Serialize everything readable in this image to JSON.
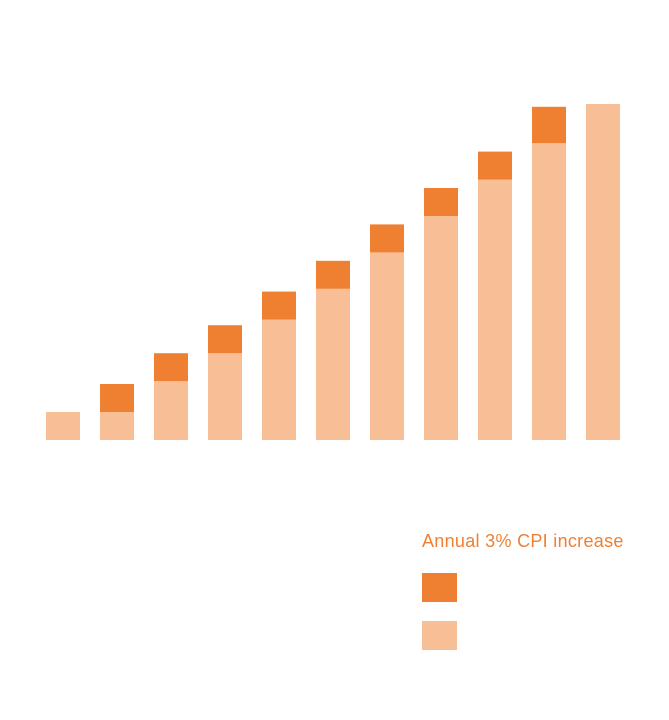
{
  "colors": {
    "base": "#F8BF96",
    "increase": "#EF7F31",
    "legend_text": "#EF7F31"
  },
  "legend": {
    "title": "Annual 3% CPI increase",
    "items": [
      {
        "series": "increase",
        "label": ""
      },
      {
        "series": "base",
        "label": ""
      }
    ]
  },
  "chart_data": {
    "type": "bar",
    "stacked": true,
    "title": "",
    "xlabel": "",
    "ylabel": "",
    "categories": [
      "",
      "",
      "",
      "",
      "",
      "",
      "",
      "",
      "",
      "",
      ""
    ],
    "ylim": [
      0,
      12
    ],
    "series": [
      {
        "key": "base",
        "values": [
          1.0,
          1.0,
          2.1,
          3.1,
          4.3,
          5.4,
          6.7,
          8.0,
          9.3,
          10.6,
          12.0
        ]
      },
      {
        "key": "increase",
        "values": [
          0,
          1.0,
          1.0,
          1.0,
          1.0,
          1.0,
          1.0,
          1.0,
          1.0,
          1.3,
          0
        ]
      }
    ],
    "grid": false,
    "legend_position": "bottom-right"
  }
}
